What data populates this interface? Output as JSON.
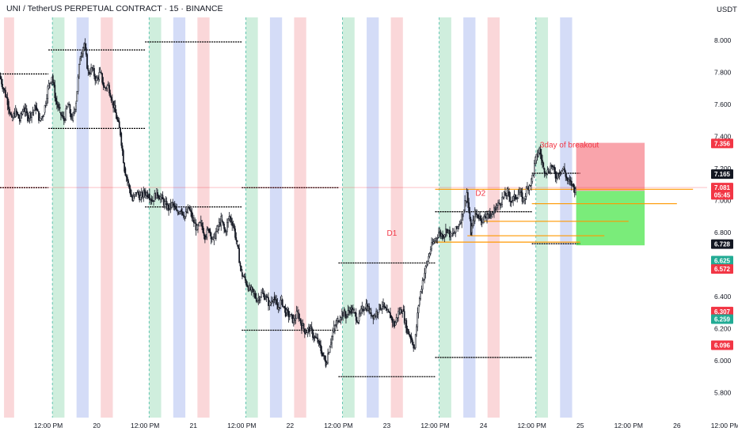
{
  "chart_data": {
    "type": "candlestick",
    "title": "UNI / TetherUS PERPETUAL CONTRACT · 15 · BINANCE",
    "currency": "USDT",
    "y_ticks": [
      5.8,
      6.0,
      6.2,
      6.4,
      6.6,
      6.8,
      7.0,
      7.2,
      7.4,
      7.6,
      7.8,
      8.0
    ],
    "y_tick_labels": [
      "5.800",
      "6.000",
      "6.200",
      "6.400",
      "6.600",
      "6.800",
      "7.000",
      "7.200",
      "7.400",
      "7.600",
      "7.800",
      "8.000"
    ],
    "x_range_hours": [
      0,
      172
    ],
    "x_ticks": [
      {
        "x": 12,
        "label": "12:00 PM"
      },
      {
        "x": 24,
        "label": "20"
      },
      {
        "x": 36,
        "label": "12:00 PM"
      },
      {
        "x": 48,
        "label": "21"
      },
      {
        "x": 60,
        "label": "12:00 PM"
      },
      {
        "x": 72,
        "label": "22"
      },
      {
        "x": 84,
        "label": "12:00 PM"
      },
      {
        "x": 96,
        "label": "23"
      },
      {
        "x": 108,
        "label": "12:00 PM"
      },
      {
        "x": 120,
        "label": "24"
      },
      {
        "x": 132,
        "label": "12:00 PM"
      },
      {
        "x": 144,
        "label": "25"
      },
      {
        "x": 156,
        "label": "12:00 PM"
      },
      {
        "x": 168,
        "label": "26"
      },
      {
        "x": 180,
        "label": "12:00 PM"
      }
    ],
    "session_bands": [
      {
        "x0": 1,
        "x1": 3.5,
        "color": "#f8c9cc"
      },
      {
        "x0": 13,
        "x1": 16,
        "color": "#bfe8d2"
      },
      {
        "x0": 19,
        "x1": 22,
        "color": "#c5d0f4"
      },
      {
        "x0": 25,
        "x1": 28,
        "color": "#f8c9cc"
      },
      {
        "x0": 37,
        "x1": 40,
        "color": "#bfe8d2"
      },
      {
        "x0": 43,
        "x1": 46,
        "color": "#c5d0f4"
      },
      {
        "x0": 49,
        "x1": 52,
        "color": "#f8c9cc"
      },
      {
        "x0": 61,
        "x1": 64,
        "color": "#bfe8d2"
      },
      {
        "x0": 67,
        "x1": 70,
        "color": "#c5d0f4"
      },
      {
        "x0": 73,
        "x1": 76,
        "color": "#f8c9cc"
      },
      {
        "x0": 85,
        "x1": 88,
        "color": "#bfe8d2"
      },
      {
        "x0": 91,
        "x1": 94,
        "color": "#c5d0f4"
      },
      {
        "x0": 97,
        "x1": 100,
        "color": "#f8c9cc"
      },
      {
        "x0": 109,
        "x1": 112,
        "color": "#bfe8d2"
      },
      {
        "x0": 115,
        "x1": 118,
        "color": "#c5d0f4"
      },
      {
        "x0": 121,
        "x1": 124,
        "color": "#f8c9cc"
      },
      {
        "x0": 133,
        "x1": 136,
        "color": "#bfe8d2"
      },
      {
        "x0": 139,
        "x1": 142,
        "color": "#c5d0f4"
      }
    ],
    "daily_levels": [
      {
        "x0": 0,
        "x1": 12,
        "y": 7.79
      },
      {
        "x0": 0,
        "x1": 12,
        "y": 7.08
      },
      {
        "x0": 12,
        "x1": 36,
        "y": 7.94
      },
      {
        "x0": 12,
        "x1": 36,
        "y": 7.45
      },
      {
        "x0": 36,
        "x1": 60,
        "y": 7.99
      },
      {
        "x0": 36,
        "x1": 60,
        "y": 6.96
      },
      {
        "x0": 60,
        "x1": 84,
        "y": 7.08
      },
      {
        "x0": 60,
        "x1": 84,
        "y": 6.19
      },
      {
        "x0": 84,
        "x1": 108,
        "y": 6.61
      },
      {
        "x0": 84,
        "x1": 108,
        "y": 5.9
      },
      {
        "x0": 108,
        "x1": 132,
        "y": 6.93
      },
      {
        "x0": 108,
        "x1": 132,
        "y": 6.02
      },
      {
        "x0": 132,
        "x1": 144,
        "y": 7.17
      },
      {
        "x0": 132,
        "x1": 144,
        "y": 6.73
      }
    ],
    "support_lines": [
      {
        "x0": 108,
        "x1": 172,
        "y": 7.07
      },
      {
        "x0": 132,
        "x1": 168,
        "y": 6.98
      },
      {
        "x0": 120,
        "x1": 156,
        "y": 6.87
      },
      {
        "x0": 116,
        "x1": 150,
        "y": 6.78
      },
      {
        "x0": 108,
        "x1": 144,
        "y": 6.74
      }
    ],
    "position": {
      "x0": 143,
      "x1": 160,
      "entry": 7.06,
      "stop": 7.36,
      "target": 6.72
    },
    "annotations": [
      {
        "text": "D1",
        "x": 96,
        "y": 6.78
      },
      {
        "text": "D2",
        "x": 118,
        "y": 7.03
      },
      {
        "text": "3day of breakout",
        "x": 134,
        "y": 7.33
      }
    ],
    "price_badges": [
      {
        "label": "7.356",
        "y": 7.356,
        "bg": "#f23645",
        "fg": "#ffffff"
      },
      {
        "label": "7.165",
        "y": 7.165,
        "bg": "#131722",
        "fg": "#ffffff"
      },
      {
        "label": "7.081",
        "y": 7.081,
        "bg": "#f23645",
        "fg": "#ffffff"
      },
      {
        "label": "05:45",
        "y": 7.035,
        "bg": "#f23645",
        "fg": "#ffffff"
      },
      {
        "label": "6.728",
        "y": 6.728,
        "bg": "#131722",
        "fg": "#ffffff"
      },
      {
        "label": "6.625",
        "y": 6.625,
        "bg": "#22ab94",
        "fg": "#ffffff"
      },
      {
        "label": "6.572",
        "y": 6.572,
        "bg": "#f23645",
        "fg": "#ffffff"
      },
      {
        "label": "6.307",
        "y": 6.307,
        "bg": "#f23645",
        "fg": "#ffffff"
      },
      {
        "label": "6.259",
        "y": 6.259,
        "bg": "#22ab94",
        "fg": "#ffffff"
      },
      {
        "label": "6.096",
        "y": 6.096,
        "bg": "#f23645",
        "fg": "#ffffff"
      }
    ],
    "last_price_line": 7.081,
    "price_path": [
      [
        0,
        7.78
      ],
      [
        1,
        7.7
      ],
      [
        2,
        7.62
      ],
      [
        3,
        7.5
      ],
      [
        4,
        7.56
      ],
      [
        5,
        7.5
      ],
      [
        6,
        7.58
      ],
      [
        7,
        7.52
      ],
      [
        8,
        7.55
      ],
      [
        9,
        7.58
      ],
      [
        10,
        7.5
      ],
      [
        11,
        7.55
      ],
      [
        12,
        7.7
      ],
      [
        13,
        7.78
      ],
      [
        14,
        7.62
      ],
      [
        15,
        7.55
      ],
      [
        16,
        7.5
      ],
      [
        17,
        7.6
      ],
      [
        18,
        7.5
      ],
      [
        19,
        7.62
      ],
      [
        20,
        7.9
      ],
      [
        21,
        7.98
      ],
      [
        22,
        7.8
      ],
      [
        23,
        7.82
      ],
      [
        24,
        7.75
      ],
      [
        25,
        7.8
      ],
      [
        26,
        7.7
      ],
      [
        27,
        7.72
      ],
      [
        28,
        7.62
      ],
      [
        29,
        7.52
      ],
      [
        30,
        7.42
      ],
      [
        31,
        7.2
      ],
      [
        32,
        7.1
      ],
      [
        33,
        7.0
      ],
      [
        34,
        7.05
      ],
      [
        35,
        7.02
      ],
      [
        36,
        7.05
      ],
      [
        37,
        7.04
      ],
      [
        38,
        7.0
      ],
      [
        39,
        7.05
      ],
      [
        40,
        7.02
      ],
      [
        41,
        6.98
      ],
      [
        42,
        6.95
      ],
      [
        43,
        6.98
      ],
      [
        44,
        6.92
      ],
      [
        45,
        6.95
      ],
      [
        46,
        6.9
      ],
      [
        47,
        6.95
      ],
      [
        48,
        6.88
      ],
      [
        49,
        6.82
      ],
      [
        50,
        6.86
      ],
      [
        51,
        6.78
      ],
      [
        52,
        6.82
      ],
      [
        53,
        6.75
      ],
      [
        54,
        6.82
      ],
      [
        55,
        6.88
      ],
      [
        56,
        6.8
      ],
      [
        57,
        6.9
      ],
      [
        58,
        6.85
      ],
      [
        59,
        6.72
      ],
      [
        60,
        6.55
      ],
      [
        61,
        6.5
      ],
      [
        62,
        6.45
      ],
      [
        63,
        6.42
      ],
      [
        64,
        6.38
      ],
      [
        65,
        6.42
      ],
      [
        66,
        6.4
      ],
      [
        67,
        6.35
      ],
      [
        68,
        6.4
      ],
      [
        69,
        6.32
      ],
      [
        70,
        6.38
      ],
      [
        71,
        6.3
      ],
      [
        72,
        6.28
      ],
      [
        73,
        6.25
      ],
      [
        74,
        6.3
      ],
      [
        75,
        6.22
      ],
      [
        76,
        6.18
      ],
      [
        77,
        6.2
      ],
      [
        78,
        6.15
      ],
      [
        79,
        6.12
      ],
      [
        80,
        6.05
      ],
      [
        81,
        5.98
      ],
      [
        82,
        6.1
      ],
      [
        83,
        6.2
      ],
      [
        84,
        6.25
      ],
      [
        85,
        6.3
      ],
      [
        86,
        6.28
      ],
      [
        87,
        6.32
      ],
      [
        88,
        6.3
      ],
      [
        89,
        6.25
      ],
      [
        90,
        6.32
      ],
      [
        91,
        6.35
      ],
      [
        92,
        6.3
      ],
      [
        93,
        6.28
      ],
      [
        94,
        6.32
      ],
      [
        95,
        6.35
      ],
      [
        96,
        6.3
      ],
      [
        97,
        6.28
      ],
      [
        98,
        6.22
      ],
      [
        99,
        6.3
      ],
      [
        100,
        6.32
      ],
      [
        101,
        6.2
      ],
      [
        102,
        6.15
      ],
      [
        103,
        6.08
      ],
      [
        104,
        6.35
      ],
      [
        105,
        6.5
      ],
      [
        106,
        6.6
      ],
      [
        107,
        6.7
      ],
      [
        108,
        6.75
      ],
      [
        109,
        6.8
      ],
      [
        110,
        6.78
      ],
      [
        111,
        6.82
      ],
      [
        112,
        6.78
      ],
      [
        113,
        6.8
      ],
      [
        114,
        6.85
      ],
      [
        115,
        6.92
      ],
      [
        116,
        7.05
      ],
      [
        117,
        6.8
      ],
      [
        118,
        6.92
      ],
      [
        119,
        6.9
      ],
      [
        120,
        6.88
      ],
      [
        121,
        6.92
      ],
      [
        122,
        6.9
      ],
      [
        123,
        6.95
      ],
      [
        124,
        6.98
      ],
      [
        125,
        7.02
      ],
      [
        126,
        7.05
      ],
      [
        127,
        7.0
      ],
      [
        128,
        7.02
      ],
      [
        129,
        7.05
      ],
      [
        130,
        7.0
      ],
      [
        131,
        7.08
      ],
      [
        132,
        7.12
      ],
      [
        133,
        7.25
      ],
      [
        134,
        7.32
      ],
      [
        135,
        7.2
      ],
      [
        136,
        7.18
      ],
      [
        137,
        7.22
      ],
      [
        138,
        7.15
      ],
      [
        139,
        7.18
      ],
      [
        140,
        7.2
      ],
      [
        141,
        7.12
      ],
      [
        142,
        7.1
      ],
      [
        143,
        7.06
      ]
    ]
  }
}
